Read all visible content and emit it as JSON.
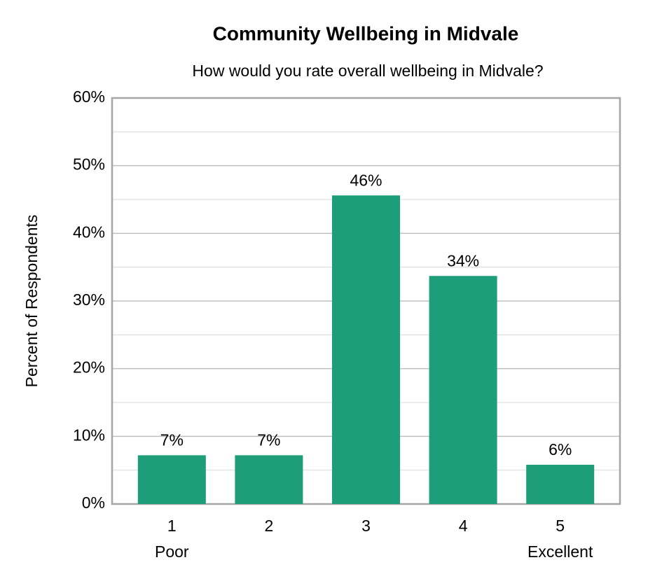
{
  "chart_data": {
    "type": "bar",
    "title": "Community Wellbeing in Midvale",
    "subtitle": "How would you rate overall wellbeing in Midvale?",
    "y_label": "Percent of Respondents",
    "categories": [
      "1",
      "2",
      "3",
      "4",
      "5"
    ],
    "category_sublabels": [
      "Poor",
      null,
      null,
      null,
      "Excellent"
    ],
    "values": [
      7.2,
      7.2,
      45.6,
      33.7,
      5.8
    ],
    "value_labels": [
      "7%",
      "7%",
      "46%",
      "34%",
      "6%"
    ],
    "color": "#1e9e78",
    "ylim": [
      0,
      60
    ],
    "yticks": [
      {
        "value": 0,
        "label": "0%"
      },
      {
        "value": 10,
        "label": "10%"
      },
      {
        "value": 20,
        "label": "20%"
      },
      {
        "value": 30,
        "label": "30%"
      },
      {
        "value": 40,
        "label": "40%"
      },
      {
        "value": 50,
        "label": "50%"
      },
      {
        "value": 60,
        "label": "60%"
      }
    ],
    "minor_yticks": [
      5,
      15,
      25,
      35,
      45,
      55
    ],
    "grid": true
  }
}
